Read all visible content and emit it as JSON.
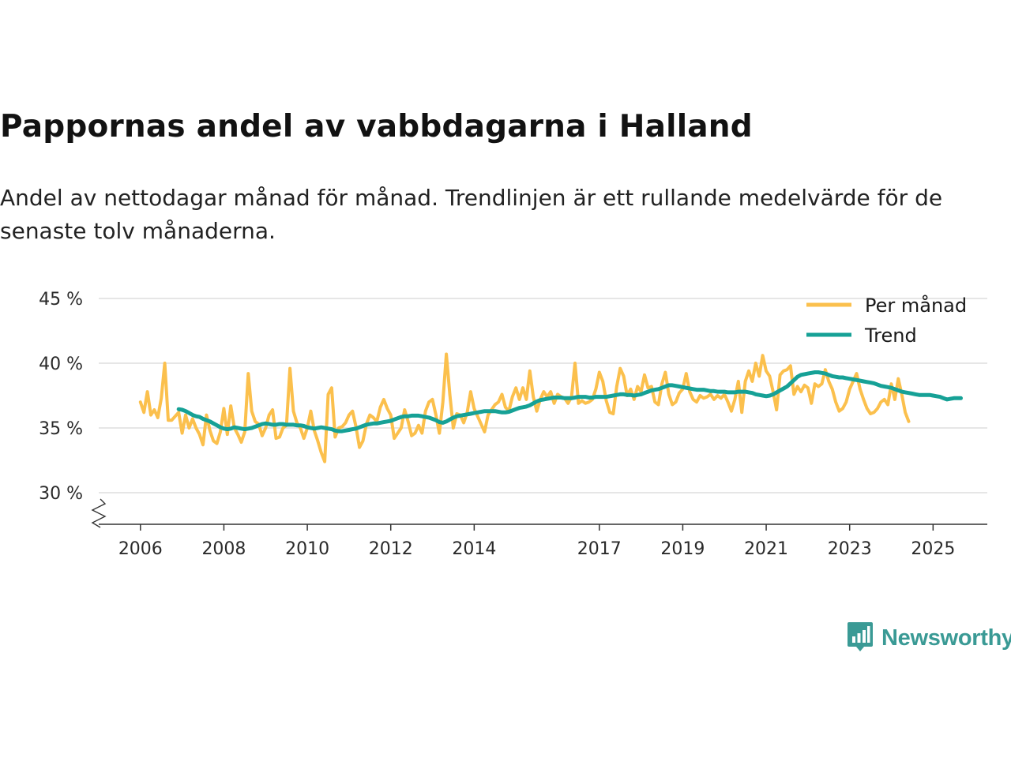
{
  "title": "Pappornas andel av vabbdagarna i Halland",
  "subtitle": "Andel av nettodagar månad för månad. Trendlinjen är ett rullande medelvärde för de senaste tolv månaderna.",
  "brand": {
    "name": "Newsworthy",
    "icon": "newsworthy-logo-icon"
  },
  "colors": {
    "monthly": "#FBC04D",
    "trend": "#16A196",
    "grid": "#dddddd",
    "axis": "#333333"
  },
  "chart_data": {
    "type": "line",
    "ylim": [
      30,
      45
    ],
    "yticks": [
      {
        "value": 30,
        "label": "30 %"
      },
      {
        "value": 35,
        "label": "35 %"
      },
      {
        "value": 40,
        "label": "40 %"
      },
      {
        "value": 45,
        "label": "45 %"
      }
    ],
    "xlim": [
      2005.0,
      2026.3
    ],
    "xticks": [
      {
        "value": 2006,
        "label": "2006"
      },
      {
        "value": 2008,
        "label": "2008"
      },
      {
        "value": 2010,
        "label": "2010"
      },
      {
        "value": 2012,
        "label": "2012"
      },
      {
        "value": 2014,
        "label": "2014"
      },
      {
        "value": 2017,
        "label": "2017"
      },
      {
        "value": 2019,
        "label": "2019"
      },
      {
        "value": 2021,
        "label": "2021"
      },
      {
        "value": 2023,
        "label": "2023"
      },
      {
        "value": 2025,
        "label": "2025"
      }
    ],
    "axis_break": true,
    "legend_position": "top-right",
    "series": [
      {
        "name": "Per månad",
        "x_start": 2006.0,
        "step": 0.08333,
        "values": [
          37.0,
          36.2,
          37.8,
          36.0,
          36.4,
          35.8,
          37.3,
          40.0,
          35.6,
          35.6,
          35.9,
          36.2,
          34.6,
          36.0,
          35.0,
          35.7,
          35.0,
          34.5,
          33.7,
          36.0,
          34.8,
          34.0,
          33.8,
          34.7,
          36.5,
          34.5,
          36.7,
          35.0,
          34.5,
          33.9,
          34.7,
          39.2,
          36.3,
          35.5,
          35.3,
          34.4,
          35.0,
          36.0,
          36.4,
          34.2,
          34.3,
          35.0,
          35.2,
          39.6,
          36.3,
          35.4,
          35.0,
          34.2,
          35.0,
          36.3,
          34.8,
          34.0,
          33.1,
          32.4,
          37.6,
          38.1,
          34.3,
          35.0,
          35.1,
          35.4,
          36.0,
          36.3,
          35.1,
          33.5,
          34.0,
          35.3,
          36.0,
          35.8,
          35.5,
          36.6,
          37.2,
          36.5,
          36.0,
          34.2,
          34.6,
          35.0,
          36.4,
          35.5,
          34.4,
          34.6,
          35.2,
          34.6,
          36.3,
          37.0,
          37.2,
          36.0,
          34.6,
          37.0,
          40.7,
          37.6,
          35.0,
          36.1,
          36.0,
          35.4,
          36.2,
          37.8,
          36.5,
          35.9,
          35.3,
          34.7,
          36.0,
          36.4,
          36.8,
          37.0,
          37.6,
          36.6,
          36.3,
          37.4,
          38.1,
          37.2,
          38.1,
          37.2,
          39.4,
          37.4,
          36.3,
          37.2,
          37.8,
          37.4,
          37.8,
          36.9,
          37.6,
          37.4,
          37.3,
          36.9,
          37.4,
          40.0,
          36.9,
          37.1,
          36.9,
          37.0,
          37.2,
          38.0,
          39.3,
          38.6,
          37.1,
          36.2,
          36.1,
          38.2,
          39.6,
          39.0,
          37.5,
          38.0,
          37.2,
          38.2,
          37.8,
          39.1,
          38.1,
          38.2,
          37.0,
          36.8,
          38.4,
          39.3,
          37.6,
          36.8,
          37.0,
          37.7,
          38.0,
          39.2,
          37.8,
          37.2,
          37.0,
          37.5,
          37.3,
          37.4,
          37.6,
          37.2,
          37.5,
          37.3,
          37.6,
          37.0,
          36.3,
          37.2,
          38.6,
          36.2,
          38.6,
          39.4,
          38.6,
          40.0,
          39.0,
          40.6,
          39.4,
          39.0,
          37.8,
          36.4,
          39.1,
          39.4,
          39.5,
          39.8,
          37.6,
          38.2,
          37.8,
          38.3,
          38.1,
          36.9,
          38.4,
          38.2,
          38.4,
          39.5,
          38.6,
          38.0,
          37.0,
          36.3,
          36.5,
          37.0,
          38.0,
          38.6,
          39.2,
          38.0,
          37.2,
          36.5,
          36.1,
          36.2,
          36.5,
          37.0,
          37.2,
          36.8,
          38.4,
          37.2,
          38.8,
          37.6,
          36.2,
          35.5
        ]
      },
      {
        "name": "Trend",
        "x_start": 2006.917,
        "step": 0.08333,
        "values": [
          36.45,
          36.4,
          36.3,
          36.15,
          36.0,
          35.9,
          35.85,
          35.7,
          35.6,
          35.5,
          35.35,
          35.2,
          35.05,
          34.95,
          34.9,
          34.95,
          35.05,
          35.0,
          34.95,
          34.9,
          34.95,
          35.0,
          35.1,
          35.2,
          35.3,
          35.35,
          35.3,
          35.25,
          35.25,
          35.3,
          35.3,
          35.25,
          35.25,
          35.25,
          35.2,
          35.2,
          35.15,
          35.05,
          35.0,
          34.95,
          35.0,
          35.05,
          35.0,
          34.95,
          34.9,
          34.8,
          34.75,
          34.75,
          34.8,
          34.85,
          34.9,
          34.95,
          35.05,
          35.15,
          35.25,
          35.3,
          35.35,
          35.35,
          35.4,
          35.45,
          35.5,
          35.55,
          35.65,
          35.75,
          35.85,
          35.9,
          35.9,
          35.95,
          35.95,
          35.95,
          35.9,
          35.85,
          35.8,
          35.7,
          35.6,
          35.45,
          35.4,
          35.5,
          35.65,
          35.8,
          35.9,
          35.95,
          36.0,
          36.05,
          36.1,
          36.15,
          36.2,
          36.25,
          36.3,
          36.3,
          36.3,
          36.3,
          36.25,
          36.2,
          36.2,
          36.25,
          36.35,
          36.45,
          36.55,
          36.6,
          36.65,
          36.75,
          36.9,
          37.05,
          37.15,
          37.2,
          37.25,
          37.3,
          37.35,
          37.35,
          37.35,
          37.3,
          37.3,
          37.3,
          37.35,
          37.4,
          37.4,
          37.4,
          37.35,
          37.35,
          37.4,
          37.4,
          37.4,
          37.4,
          37.45,
          37.5,
          37.55,
          37.6,
          37.6,
          37.55,
          37.55,
          37.5,
          37.55,
          37.6,
          37.7,
          37.8,
          37.9,
          37.95,
          38.0,
          38.1,
          38.2,
          38.3,
          38.3,
          38.25,
          38.2,
          38.15,
          38.1,
          38.05,
          38.0,
          37.95,
          37.95,
          37.95,
          37.9,
          37.85,
          37.85,
          37.8,
          37.8,
          37.8,
          37.75,
          37.75,
          37.75,
          37.8,
          37.8,
          37.8,
          37.75,
          37.7,
          37.6,
          37.55,
          37.5,
          37.45,
          37.5,
          37.6,
          37.75,
          37.9,
          38.05,
          38.2,
          38.45,
          38.7,
          38.95,
          39.1,
          39.15,
          39.2,
          39.25,
          39.3,
          39.3,
          39.25,
          39.2,
          39.1,
          39.0,
          38.95,
          38.9,
          38.9,
          38.85,
          38.8,
          38.75,
          38.7,
          38.65,
          38.6,
          38.55,
          38.5,
          38.45,
          38.35,
          38.25,
          38.2,
          38.15,
          38.1,
          38.0,
          37.9,
          37.8,
          37.75,
          37.7,
          37.65,
          37.6,
          37.55,
          37.55,
          37.55,
          37.55,
          37.5,
          37.45,
          37.4,
          37.3,
          37.2,
          37.25,
          37.3,
          37.3,
          37.3
        ]
      }
    ]
  }
}
